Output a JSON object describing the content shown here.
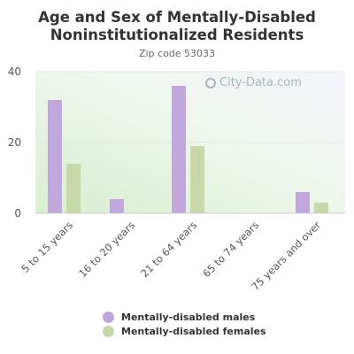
{
  "chart_data": {
    "type": "bar",
    "title_line1": "Age and Sex of Mentally-Disabled",
    "title_line2": "Noninstitutionalized Residents",
    "subtitle": "Zip code 53033",
    "categories": [
      "5 to 15 years",
      "16 to 20 years",
      "21 to 64 years",
      "65 to 74 years",
      "75 years and over"
    ],
    "series": [
      {
        "name": "Mentally-disabled males",
        "color": "#c0a8dc",
        "values": [
          32,
          4,
          36,
          0,
          6
        ]
      },
      {
        "name": "Mentally-disabled females",
        "color": "#c8d8a8",
        "values": [
          14,
          0,
          19,
          0,
          3
        ]
      }
    ],
    "yticks": [
      "0",
      "20",
      "40"
    ],
    "ylim": [
      0,
      40
    ],
    "grid": true,
    "legend_position": "bottom",
    "watermark": "City-Data.com"
  }
}
